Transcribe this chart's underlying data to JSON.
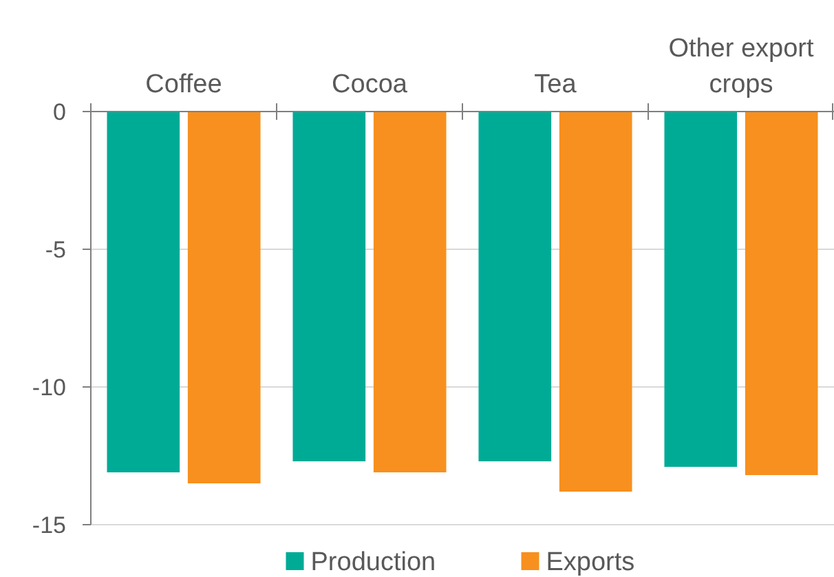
{
  "chart_data": {
    "type": "bar",
    "categories": [
      "Coffee",
      "Cocoa",
      "Tea",
      "Other export crops"
    ],
    "series": [
      {
        "name": "Production",
        "color": "#00ab96",
        "values": [
          -13.1,
          -12.7,
          -12.7,
          -12.9
        ]
      },
      {
        "name": "Exports",
        "color": "#f7901e",
        "values": [
          -13.5,
          -13.1,
          -13.8,
          -13.2
        ]
      }
    ],
    "ylim": [
      -15,
      0
    ],
    "yticks": [
      0,
      -5,
      -10,
      -15
    ],
    "grid": "y",
    "legend": "bottom"
  }
}
